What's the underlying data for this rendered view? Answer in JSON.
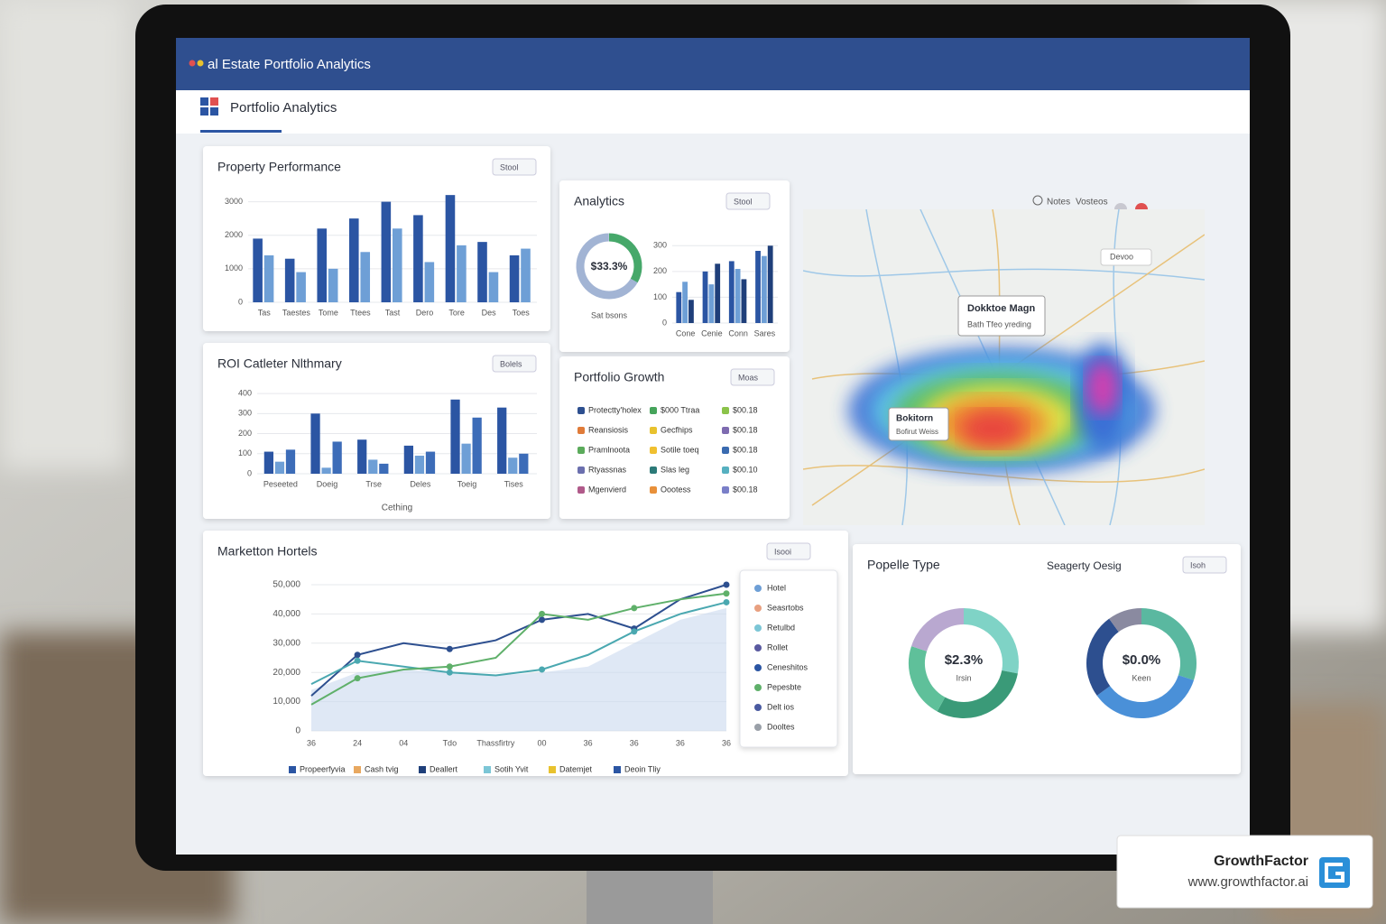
{
  "header": {
    "title": "al Estate Portfolio Analytics",
    "nav": "Portfolio Analytics",
    "tools": [
      "Notes",
      "Vosteos"
    ]
  },
  "property_performance": {
    "title": "Property Performance",
    "button": "Stool",
    "ylim": [
      0,
      3500
    ],
    "yticks": [
      0,
      1000,
      2000,
      3000
    ],
    "categories": [
      "Tas",
      "Taestes",
      "Tome",
      "Ttees",
      "Tast",
      "Dero",
      "Tore",
      "Des",
      "Toes"
    ],
    "series": [
      {
        "color": "#2b55a3",
        "values": [
          1900,
          1300,
          2200,
          2500,
          3000,
          2600,
          3200,
          1800,
          1400
        ]
      },
      {
        "color": "#6e9fd6",
        "values": [
          1400,
          900,
          1000,
          1500,
          2200,
          1200,
          1700,
          900,
          1600
        ]
      }
    ]
  },
  "analytics": {
    "title": "Analytics",
    "button": "Stool",
    "donut": {
      "value": 33.3,
      "label": "$33.3%",
      "caption": "Sat bsons",
      "color": "#46a86a"
    },
    "ylim": [
      0,
      350
    ],
    "yticks": [
      0,
      100,
      200,
      300
    ],
    "categories": [
      "Cone",
      "Cenie",
      "Conn",
      "Sares"
    ],
    "series": [
      {
        "color": "#2b55a3",
        "values": [
          120,
          200,
          240,
          280
        ]
      },
      {
        "color": "#6e9fd6",
        "values": [
          160,
          150,
          210,
          260
        ]
      },
      {
        "color": "#1f3f7a",
        "values": [
          90,
          230,
          170,
          300
        ]
      }
    ]
  },
  "roi": {
    "title": "ROI Catleter Nlthmary",
    "button": "Bolels",
    "xlabel": "Cething",
    "ylim": [
      0,
      450
    ],
    "yticks": [
      0,
      100,
      200,
      300,
      400
    ],
    "categories": [
      "Peseeted",
      "Doeig",
      "Trse",
      "Deles",
      "Toeig",
      "Tises"
    ],
    "series": [
      {
        "color": "#2b55a3",
        "values": [
          110,
          300,
          170,
          140,
          370,
          330
        ]
      },
      {
        "color": "#6e9fd6",
        "values": [
          60,
          30,
          70,
          90,
          150,
          80
        ]
      },
      {
        "color": "#3c6cb8",
        "values": [
          120,
          160,
          50,
          110,
          280,
          100
        ]
      }
    ]
  },
  "growth": {
    "title": "Portfolio Growth",
    "button": "Moas",
    "items": [
      {
        "label": "Protectty'holex",
        "color": "#2d4f8f"
      },
      {
        "label": "$000 Ttraa",
        "color": "#46a45b"
      },
      {
        "label": "$00.18",
        "color": "#8bc34a"
      },
      {
        "label": "Reansiosis",
        "color": "#e07b39"
      },
      {
        "label": "Gecfhips",
        "color": "#e8c22e"
      },
      {
        "label": "$00.18",
        "color": "#7e6bb0"
      },
      {
        "label": "Pramlnoota",
        "color": "#5bab5b"
      },
      {
        "label": "Sotile toeq",
        "color": "#f0c030"
      },
      {
        "label": "$00.18",
        "color": "#3a6bb0"
      },
      {
        "label": "Rtyassnas",
        "color": "#6b6fae"
      },
      {
        "label": "Slas leg",
        "color": "#2c7a78"
      },
      {
        "label": "$00.10",
        "color": "#56b0c0"
      },
      {
        "label": "Mgenvierd",
        "color": "#b05a8a"
      },
      {
        "label": "Oootess",
        "color": "#e8903a"
      },
      {
        "label": "$00.18",
        "color": "#7a7fc8"
      }
    ]
  },
  "map": {
    "title": "Dokktoe Magn",
    "subtitle": "Bath Tfeo yreding",
    "label": "Bokitorn",
    "label2": "Bofirut Weiss",
    "button": "Devoo"
  },
  "market": {
    "title": "Marketton Hortels",
    "button": "Isooi",
    "ylim": [
      0,
      50000
    ],
    "yticks": [
      0,
      {
        "value": 10000,
        "label": "10,000"
      },
      {
        "value": 20000,
        "label": "20,000"
      },
      {
        "value": 30000,
        "label": "30,000"
      },
      {
        "value": 40000,
        "label": "40,000"
      },
      {
        "value": 50000,
        "label": "50,000"
      }
    ],
    "categories": [
      "36",
      "24",
      "04",
      "Tdo",
      "Thassfirtry",
      "00",
      "36",
      "36",
      "36",
      "36"
    ],
    "area": {
      "color": "#c9d8ee",
      "values": [
        14000,
        20000,
        21000,
        20000,
        19000,
        20000,
        22000,
        30000,
        38000,
        42000
      ]
    },
    "series": [
      {
        "color": "#2d4f8f",
        "values": [
          12000,
          26000,
          30000,
          28000,
          31000,
          38000,
          40000,
          35000,
          45000,
          50000
        ]
      },
      {
        "color": "#4aa8b0",
        "values": [
          16000,
          24000,
          22000,
          20000,
          19000,
          21000,
          26000,
          34000,
          40000,
          44000
        ]
      },
      {
        "color": "#5fb06a",
        "values": [
          9000,
          18000,
          21000,
          22000,
          25000,
          40000,
          38000,
          42000,
          45000,
          47000
        ]
      }
    ],
    "legend": [
      {
        "label": "Propeerfyvia",
        "color": "#2b55a3"
      },
      {
        "label": "Cash tvig",
        "color": "#e8a860"
      },
      {
        "label": "Deallert",
        "color": "#1f3f7a"
      },
      {
        "label": "Sotih Yvit",
        "color": "#7cc6d6"
      },
      {
        "label": "Datemjet",
        "color": "#e8c22e"
      },
      {
        "label": "Deoin Tliy",
        "color": "#2b55a3"
      }
    ],
    "side": [
      {
        "label": "Hotel",
        "color": "#6e9fd6"
      },
      {
        "label": "Seasrtobs",
        "color": "#e8a080"
      },
      {
        "label": "Retulbd",
        "color": "#7cc6d6"
      },
      {
        "label": "Rollet",
        "color": "#5a5aa0"
      },
      {
        "label": "Ceneshitos",
        "color": "#2b55a3"
      },
      {
        "label": "Pepesbte",
        "color": "#5fb06a"
      },
      {
        "label": "Delt ios",
        "color": "#4a5aa0"
      },
      {
        "label": "Dooltes",
        "color": "#9aa0a8"
      }
    ]
  },
  "property_type": {
    "title": "Popelle Type",
    "subtitle": "Seagerty Oesig",
    "button": "Isoh",
    "donuts": [
      {
        "label": "$2.3%",
        "caption": "Irsin",
        "segments": [
          {
            "value": 28,
            "color": "#7fd3c6"
          },
          {
            "value": 30,
            "color": "#3a9a78"
          },
          {
            "value": 22,
            "color": "#5fc09a"
          },
          {
            "value": 20,
            "color": "#b9a8d0"
          }
        ]
      },
      {
        "label": "$0.0%",
        "caption": "Keen",
        "segments": [
          {
            "value": 30,
            "color": "#5ab8a0"
          },
          {
            "value": 35,
            "color": "#4a90d8"
          },
          {
            "value": 25,
            "color": "#2d4f8f"
          },
          {
            "value": 10,
            "color": "#8a8aa0"
          }
        ]
      }
    ]
  },
  "badge": {
    "name": "GrowthFactor",
    "url": "www.growthfactor.ai"
  }
}
